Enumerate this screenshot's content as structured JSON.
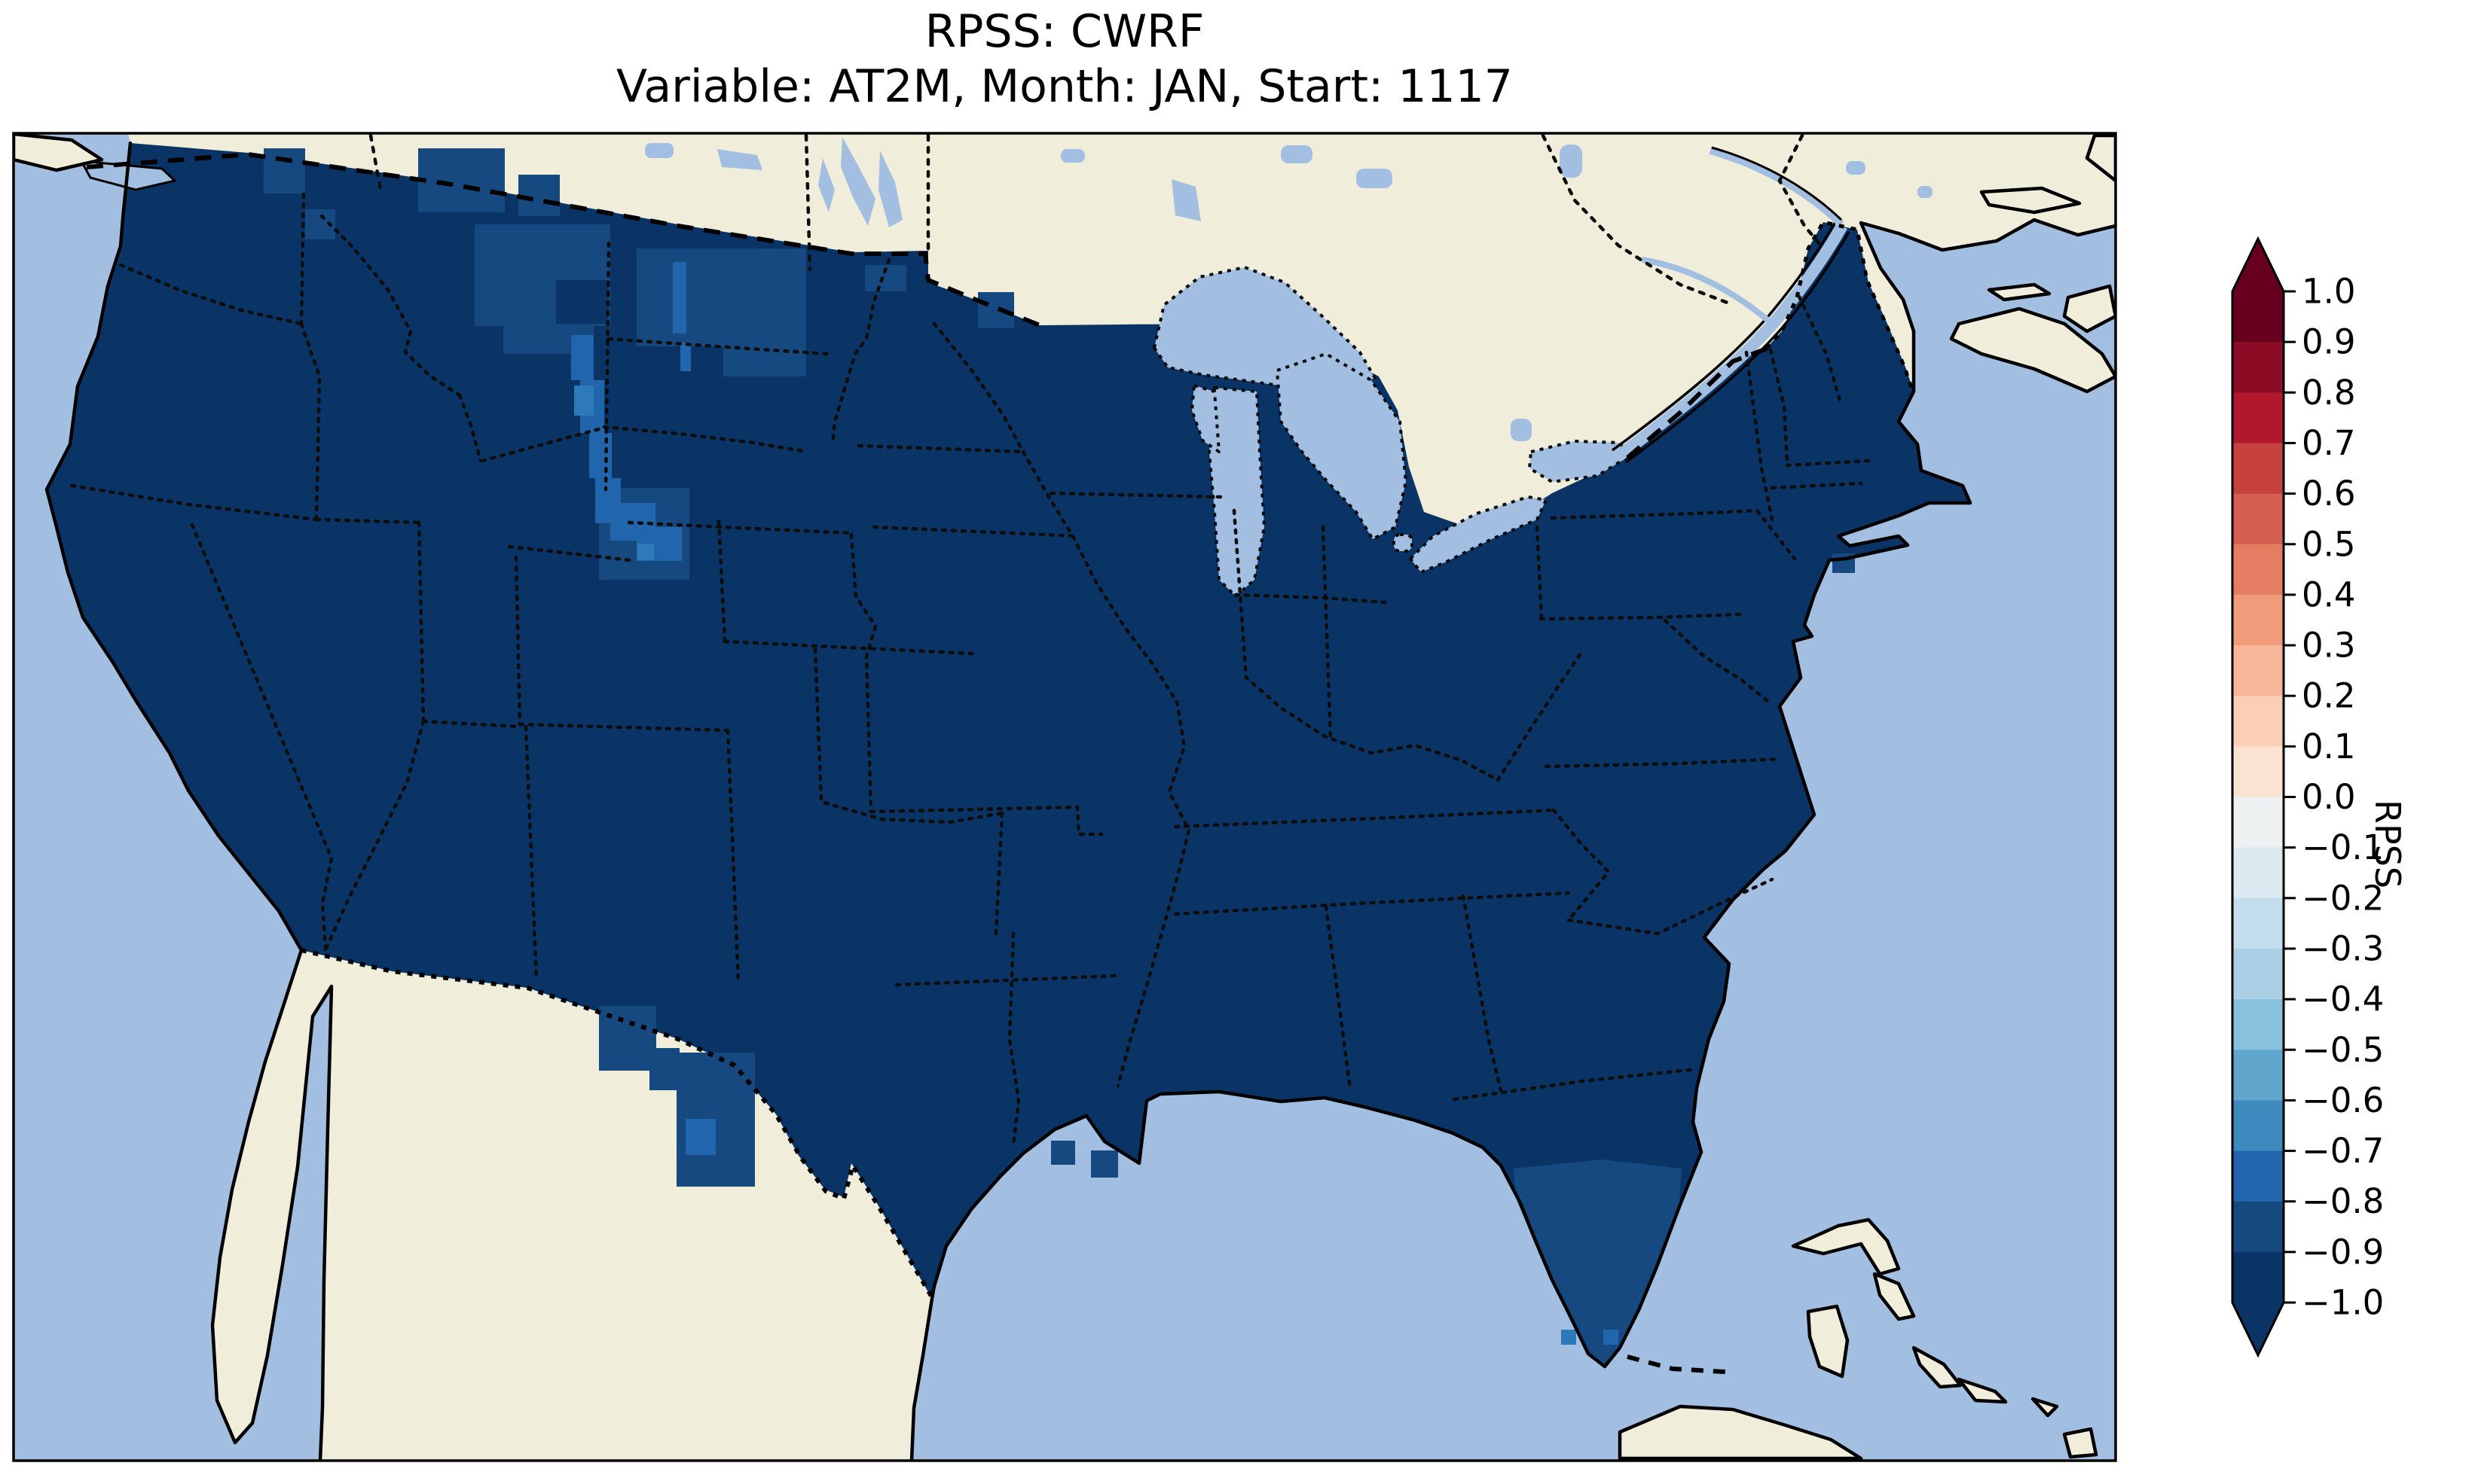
{
  "figure": {
    "title_line1": "RPSS: CWRF",
    "title_line2": "Variable: AT2M, Month: JAN, Start: 1117"
  },
  "colorbar": {
    "label": "RPSS",
    "ticks": [
      "1.0",
      "0.9",
      "0.8",
      "0.7",
      "0.6",
      "0.5",
      "0.4",
      "0.3",
      "0.2",
      "0.1",
      "0.0",
      "−0.1",
      "−0.2",
      "−0.3",
      "−0.4",
      "−0.5",
      "−0.6",
      "−0.7",
      "−0.8",
      "−0.9",
      "−1.0"
    ],
    "colors": [
      "#67001f",
      "#8c0b25",
      "#b2182b",
      "#c6413e",
      "#d56050",
      "#e47d61",
      "#f09c7b",
      "#f7b699",
      "#fbceb6",
      "#fbe3d4",
      "#eef1f2",
      "#dbe9f0",
      "#c4ddec",
      "#abd0e5",
      "#89c0dc",
      "#60a6cd",
      "#3c8abe",
      "#2166ac",
      "#15497f",
      "#0b3466"
    ],
    "extend_over_color": "#67001f",
    "extend_under_color": "#0b3466"
  },
  "map_colors": {
    "ocean": "#a2bfe2",
    "land": "#f0eedb",
    "coastline": "#000000",
    "us_fill_dominant": "#0b3466",
    "shade_neg09_neg08": "#15497f",
    "shade_neg08_neg07": "#2166ac",
    "shade_neg07_neg06": "#2e79b8"
  },
  "chart_data": {
    "type": "heatmap",
    "title": "RPSS: CWRF",
    "subtitle": "Variable: AT2M, Month: JAN, Start: 1117",
    "colorbar_label": "RPSS",
    "value_range": [
      -1.0,
      1.0
    ],
    "bin_width": 0.1,
    "colorbar_ticks": [
      1.0,
      0.9,
      0.8,
      0.7,
      0.6,
      0.5,
      0.4,
      0.3,
      0.2,
      0.1,
      0.0,
      -0.1,
      -0.2,
      -0.3,
      -0.4,
      -0.5,
      -0.6,
      -0.7,
      -0.8,
      -0.9,
      -1.0
    ],
    "colormap": "RdBu discrete, 20 bins, pointed extend triangles both ends",
    "legend_position": "right",
    "regions": [
      {
        "region": "Most of contiguous United States",
        "rpss_bin": "-1.0 to -0.9"
      },
      {
        "region": "Western Montana / northern Rockies block",
        "rpss_bin": "-0.9 to -0.8"
      },
      {
        "region": "Eastern North Dakota and northeastern South Dakota",
        "rpss_bin": "-0.9 to -0.8"
      },
      {
        "region": "Diagonal High-Plains streak from central Montana through east Wyoming into Nebraska panhandle",
        "rpss_bin": "-0.8 to -0.6"
      },
      {
        "region": "Southwestern Nebraska patch",
        "rpss_bin": "-0.8 to -0.7"
      },
      {
        "region": "Southern Florida peninsula",
        "rpss_bin": "-0.9 to -0.8"
      },
      {
        "region": "West Texas along Rio Grande / Big Bend",
        "rpss_bin": "-0.8 to -0.7"
      },
      {
        "region": "Scattered grid cells along US-Canada border (WA/ID/MT/MN)",
        "rpss_bin": "-0.9 to -0.8"
      },
      {
        "region": "Three isolated cells southwest of Florida tip (Keys)",
        "rpss_bin": "-0.8 to -0.6"
      }
    ],
    "no_data_regions": [
      "Canada",
      "Mexico",
      "Atlantic/Pacific/Gulf ocean",
      "Great Lakes",
      "Bahamas",
      "Cuba"
    ]
  }
}
